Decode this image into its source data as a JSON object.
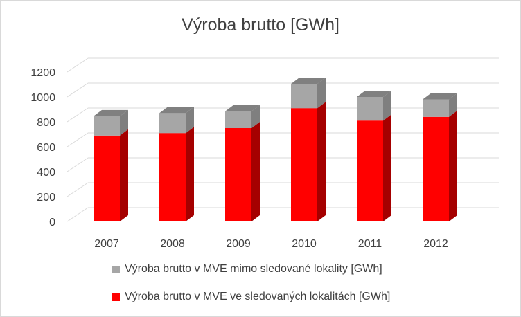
{
  "chart_data": {
    "type": "bar",
    "stacked": true,
    "three_d": true,
    "title": "Výroba brutto [GWh]",
    "categories": [
      "2007",
      "2008",
      "2009",
      "2010",
      "2011",
      "2012"
    ],
    "yticks": [
      "0",
      "200",
      "400",
      "600",
      "800",
      "1000",
      "1200"
    ],
    "ylim": [
      0,
      1200
    ],
    "series": [
      {
        "name": "Výroba brutto v MVE ve sledovaných lokalitách [GWh]",
        "color": "#ff0000",
        "side_color": "#a50000",
        "values": [
          690,
          710,
          750,
          910,
          810,
          840
        ]
      },
      {
        "name": "Výroba brutto v MVE mimo sledované lokality [GWh]",
        "color": "#a6a6a6",
        "side_color": "#7f7f7f",
        "top_color": "#808080",
        "values": [
          155,
          160,
          135,
          195,
          190,
          140
        ]
      }
    ],
    "legend_position": "bottom",
    "grid": true
  }
}
